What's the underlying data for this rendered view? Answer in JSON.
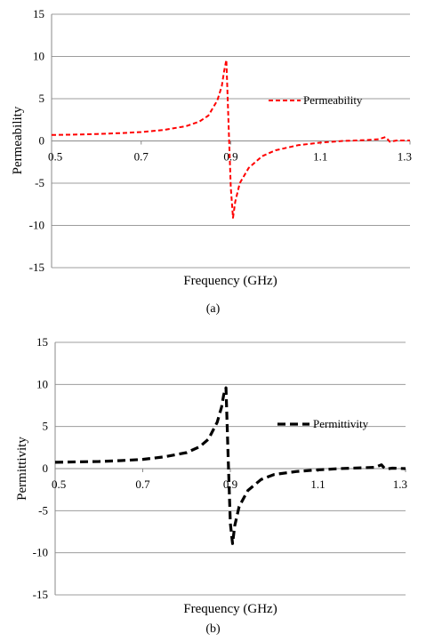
{
  "chart_data": [
    {
      "type": "line",
      "caption": "(a)",
      "title": "",
      "xlabel": "Frequency (GHz)",
      "ylabel": "Permeability",
      "xlim": [
        0.5,
        1.3
      ],
      "ylim": [
        -15,
        15
      ],
      "xticks": [
        0.5,
        0.7,
        0.9,
        1.1,
        1.3
      ],
      "xtick_labels": [
        "0.5",
        "0.7",
        "0.9",
        "1.1",
        "1.3"
      ],
      "yticks": [
        -15,
        -10,
        -5,
        0,
        5,
        10,
        15
      ],
      "ytick_labels": [
        "-15",
        "-10",
        "-5",
        "0",
        "5",
        "10",
        "15"
      ],
      "grid": "horizontal",
      "legend_position": "right",
      "series": [
        {
          "name": "Permeability",
          "color": "#ff0000",
          "style": "dashed",
          "x": [
            0.5,
            0.55,
            0.6,
            0.65,
            0.7,
            0.75,
            0.8,
            0.83,
            0.85,
            0.87,
            0.88,
            0.885,
            0.89,
            0.895,
            0.9,
            0.905,
            0.91,
            0.92,
            0.94,
            0.97,
            1.0,
            1.05,
            1.1,
            1.15,
            1.2,
            1.23,
            1.245,
            1.25,
            1.255,
            1.27,
            1.3
          ],
          "y": [
            0.7,
            0.75,
            0.82,
            0.92,
            1.05,
            1.3,
            1.75,
            2.3,
            3.0,
            4.8,
            6.5,
            8.2,
            9.6,
            2.0,
            -5.5,
            -9.1,
            -7.2,
            -5.0,
            -3.2,
            -1.8,
            -1.1,
            -0.5,
            -0.2,
            0.0,
            0.1,
            0.2,
            0.45,
            0.2,
            -0.1,
            0.05,
            0.05
          ]
        }
      ]
    },
    {
      "type": "line",
      "caption": "(b)",
      "title": "",
      "xlabel": "Frequency (GHz)",
      "ylabel": "Permittivity",
      "xlim": [
        0.5,
        1.3
      ],
      "ylim": [
        -15,
        15
      ],
      "xticks": [
        0.5,
        0.7,
        0.9,
        1.1,
        1.3
      ],
      "xtick_labels": [
        "0.5",
        "0.7",
        "0.9",
        "1.1",
        "1.3"
      ],
      "yticks": [
        -15,
        -10,
        -5,
        0,
        5,
        10,
        15
      ],
      "ytick_labels": [
        "-15",
        "-10",
        "-5",
        "0",
        "5",
        "10",
        "15"
      ],
      "grid": "horizontal",
      "legend_position": "right",
      "series": [
        {
          "name": "Permittivity",
          "color": "#000000",
          "style": "dashed",
          "x": [
            0.5,
            0.55,
            0.6,
            0.65,
            0.7,
            0.75,
            0.8,
            0.83,
            0.85,
            0.87,
            0.88,
            0.885,
            0.89,
            0.895,
            0.9,
            0.905,
            0.91,
            0.92,
            0.94,
            0.97,
            1.0,
            1.05,
            1.1,
            1.15,
            1.2,
            1.23,
            1.245,
            1.25,
            1.255,
            1.27,
            1.3
          ],
          "y": [
            0.75,
            0.8,
            0.85,
            0.95,
            1.1,
            1.4,
            1.9,
            2.6,
            3.5,
            5.5,
            7.3,
            8.8,
            9.6,
            1.5,
            -6.5,
            -8.9,
            -6.8,
            -4.5,
            -2.6,
            -1.3,
            -0.7,
            -0.35,
            -0.15,
            0.0,
            0.1,
            0.15,
            0.45,
            0.15,
            -0.05,
            0.05,
            0.0
          ]
        }
      ]
    }
  ]
}
